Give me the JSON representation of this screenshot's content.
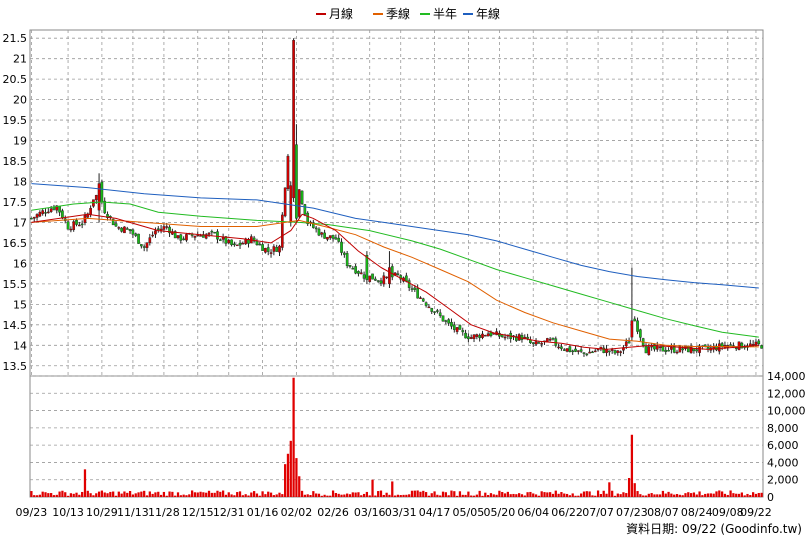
{
  "chart_data": {
    "type": "candlestick-with-volume",
    "legend": [
      {
        "label": "月線",
        "color": "#c00000"
      },
      {
        "label": "季線",
        "color": "#e06000"
      },
      {
        "label": "半年",
        "color": "#22bb22"
      },
      {
        "label": "年線",
        "color": "#1f5fbf"
      }
    ],
    "price_axis": {
      "min": 13.25,
      "max": 21.7,
      "ticks": [
        13.5,
        14,
        14.5,
        15,
        15.5,
        16,
        16.5,
        17,
        17.5,
        18,
        18.5,
        19,
        19.5,
        20,
        20.5,
        21,
        21.5
      ]
    },
    "volume_axis": {
      "min": 0,
      "max": 14000,
      "ticks": [
        0,
        2000,
        4000,
        6000,
        8000,
        10000,
        12000,
        14000
      ],
      "tick_labels": [
        "0",
        "2,000",
        "4,000",
        "6,000",
        "8,000",
        "10,000",
        "12,000",
        "14,000"
      ]
    },
    "x_labels": [
      {
        "label": "09/23",
        "i": 0
      },
      {
        "label": "10/13",
        "i": 13
      },
      {
        "label": "10/29",
        "i": 25
      },
      {
        "label": "11/13",
        "i": 36
      },
      {
        "label": "11/28",
        "i": 47
      },
      {
        "label": "12/15",
        "i": 59
      },
      {
        "label": "12/31",
        "i": 70
      },
      {
        "label": "01/16",
        "i": 82
      },
      {
        "label": "02/02",
        "i": 94
      },
      {
        "label": "02/26",
        "i": 107
      },
      {
        "label": "03/16",
        "i": 120
      },
      {
        "label": "03/31",
        "i": 131
      },
      {
        "label": "04/17",
        "i": 143
      },
      {
        "label": "05/05",
        "i": 155
      },
      {
        "label": "05/20",
        "i": 166
      },
      {
        "label": "06/04",
        "i": 178
      },
      {
        "label": "06/22",
        "i": 190
      },
      {
        "label": "07/07",
        "i": 201
      },
      {
        "label": "07/23",
        "i": 213
      },
      {
        "label": "08/07",
        "i": 224
      },
      {
        "label": "08/24",
        "i": 236
      },
      {
        "label": "09/08",
        "i": 247
      },
      {
        "label": "09/22",
        "i": 257
      }
    ],
    "n_days": 260,
    "close_anchors": [
      [
        0,
        17.1
      ],
      [
        5,
        17.3
      ],
      [
        9,
        17.4
      ],
      [
        13,
        16.9
      ],
      [
        18,
        17.0
      ],
      [
        20,
        17.2
      ],
      [
        22,
        17.6
      ],
      [
        24,
        17.7
      ],
      [
        26,
        17.3
      ],
      [
        30,
        16.9
      ],
      [
        35,
        16.8
      ],
      [
        40,
        16.4
      ],
      [
        44,
        16.8
      ],
      [
        48,
        16.9
      ],
      [
        52,
        16.6
      ],
      [
        58,
        16.7
      ],
      [
        65,
        16.7
      ],
      [
        72,
        16.4
      ],
      [
        78,
        16.6
      ],
      [
        84,
        16.3
      ],
      [
        88,
        16.4
      ],
      [
        91,
        18.7
      ],
      [
        93,
        19.2
      ],
      [
        95,
        17.8
      ],
      [
        98,
        17.0
      ],
      [
        103,
        16.7
      ],
      [
        108,
        16.6
      ],
      [
        112,
        16.0
      ],
      [
        118,
        15.7
      ],
      [
        124,
        15.6
      ],
      [
        130,
        15.7
      ],
      [
        136,
        15.3
      ],
      [
        142,
        14.9
      ],
      [
        148,
        14.5
      ],
      [
        152,
        14.3
      ],
      [
        156,
        14.2
      ],
      [
        162,
        14.3
      ],
      [
        168,
        14.2
      ],
      [
        174,
        14.2
      ],
      [
        178,
        14.0
      ],
      [
        184,
        14.1
      ],
      [
        190,
        13.9
      ],
      [
        196,
        13.8
      ],
      [
        202,
        13.9
      ],
      [
        208,
        13.8
      ],
      [
        212,
        14.1
      ],
      [
        214,
        14.6
      ],
      [
        218,
        13.9
      ],
      [
        222,
        13.9
      ],
      [
        228,
        13.9
      ],
      [
        234,
        13.9
      ],
      [
        240,
        13.9
      ],
      [
        246,
        14.0
      ],
      [
        252,
        14.0
      ],
      [
        257,
        14.0
      ]
    ],
    "big_candles": [
      {
        "i": 92,
        "open": 17.0,
        "close": 17.9,
        "high": 18.0,
        "low": 16.9
      },
      {
        "i": 93,
        "open": 17.6,
        "close": 21.45,
        "high": 21.5,
        "low": 17.5
      },
      {
        "i": 94,
        "open": 18.9,
        "close": 17.1,
        "high": 19.4,
        "low": 17.0
      },
      {
        "i": 24,
        "open": 17.3,
        "close": 17.95,
        "high": 18.2,
        "low": 17.0
      },
      {
        "i": 213,
        "open": 14.2,
        "close": 14.6,
        "high": 15.9,
        "low": 14.1
      },
      {
        "i": 119,
        "open": 16.2,
        "close": 15.6,
        "high": 16.3,
        "low": 15.5
      },
      {
        "i": 127,
        "open": 15.5,
        "close": 15.9,
        "high": 16.3,
        "low": 15.4
      }
    ],
    "volume_spikes": [
      {
        "i": 90,
        "v": 3800
      },
      {
        "i": 91,
        "v": 5000
      },
      {
        "i": 92,
        "v": 6500
      },
      {
        "i": 93,
        "v": 13800
      },
      {
        "i": 94,
        "v": 4500
      },
      {
        "i": 95,
        "v": 2400
      },
      {
        "i": 19,
        "v": 3200
      },
      {
        "i": 212,
        "v": 2200
      },
      {
        "i": 213,
        "v": 7200
      },
      {
        "i": 214,
        "v": 1600
      },
      {
        "i": 205,
        "v": 1700
      },
      {
        "i": 121,
        "v": 2000
      },
      {
        "i": 128,
        "v": 1800
      }
    ],
    "base_volume": 450,
    "ma_month": [
      [
        0,
        17.0
      ],
      [
        20,
        17.2
      ],
      [
        30,
        17.1
      ],
      [
        45,
        16.8
      ],
      [
        60,
        16.7
      ],
      [
        75,
        16.6
      ],
      [
        85,
        16.5
      ],
      [
        92,
        16.8
      ],
      [
        96,
        17.2
      ],
      [
        100,
        17.1
      ],
      [
        108,
        16.8
      ],
      [
        116,
        16.3
      ],
      [
        124,
        15.9
      ],
      [
        132,
        15.6
      ],
      [
        140,
        15.3
      ],
      [
        148,
        14.9
      ],
      [
        156,
        14.5
      ],
      [
        164,
        14.3
      ],
      [
        172,
        14.2
      ],
      [
        180,
        14.1
      ],
      [
        188,
        14.05
      ],
      [
        196,
        13.95
      ],
      [
        204,
        13.9
      ],
      [
        212,
        13.95
      ],
      [
        220,
        14.0
      ],
      [
        230,
        13.95
      ],
      [
        240,
        13.9
      ],
      [
        250,
        13.95
      ],
      [
        258,
        14.0
      ]
    ],
    "ma_quarter": [
      [
        0,
        17.0
      ],
      [
        20,
        17.1
      ],
      [
        40,
        17.0
      ],
      [
        60,
        16.9
      ],
      [
        80,
        16.9
      ],
      [
        95,
        17.05
      ],
      [
        104,
        16.9
      ],
      [
        115,
        16.7
      ],
      [
        125,
        16.4
      ],
      [
        135,
        16.15
      ],
      [
        145,
        15.85
      ],
      [
        155,
        15.55
      ],
      [
        165,
        15.1
      ],
      [
        175,
        14.8
      ],
      [
        185,
        14.55
      ],
      [
        195,
        14.35
      ],
      [
        205,
        14.15
      ],
      [
        215,
        14.1
      ],
      [
        225,
        14.0
      ],
      [
        235,
        13.97
      ],
      [
        245,
        13.97
      ],
      [
        258,
        13.96
      ]
    ],
    "ma_halfyear": [
      [
        0,
        17.3
      ],
      [
        15,
        17.45
      ],
      [
        25,
        17.5
      ],
      [
        35,
        17.45
      ],
      [
        45,
        17.25
      ],
      [
        60,
        17.15
      ],
      [
        80,
        17.05
      ],
      [
        95,
        17.0
      ],
      [
        105,
        16.95
      ],
      [
        120,
        16.8
      ],
      [
        135,
        16.55
      ],
      [
        145,
        16.35
      ],
      [
        155,
        16.1
      ],
      [
        165,
        15.85
      ],
      [
        175,
        15.65
      ],
      [
        185,
        15.45
      ],
      [
        195,
        15.25
      ],
      [
        205,
        15.05
      ],
      [
        215,
        14.85
      ],
      [
        225,
        14.65
      ],
      [
        235,
        14.48
      ],
      [
        245,
        14.32
      ],
      [
        258,
        14.2
      ]
    ],
    "ma_year": [
      [
        0,
        17.95
      ],
      [
        20,
        17.85
      ],
      [
        40,
        17.7
      ],
      [
        60,
        17.6
      ],
      [
        80,
        17.55
      ],
      [
        100,
        17.35
      ],
      [
        115,
        17.1
      ],
      [
        125,
        17.0
      ],
      [
        140,
        16.85
      ],
      [
        155,
        16.7
      ],
      [
        165,
        16.55
      ],
      [
        175,
        16.35
      ],
      [
        185,
        16.15
      ],
      [
        195,
        15.95
      ],
      [
        205,
        15.8
      ],
      [
        215,
        15.68
      ],
      [
        225,
        15.6
      ],
      [
        235,
        15.53
      ],
      [
        245,
        15.48
      ],
      [
        258,
        15.4
      ]
    ]
  },
  "footer": {
    "text": "資料日期: 09/22 (Goodinfo.tw)"
  }
}
